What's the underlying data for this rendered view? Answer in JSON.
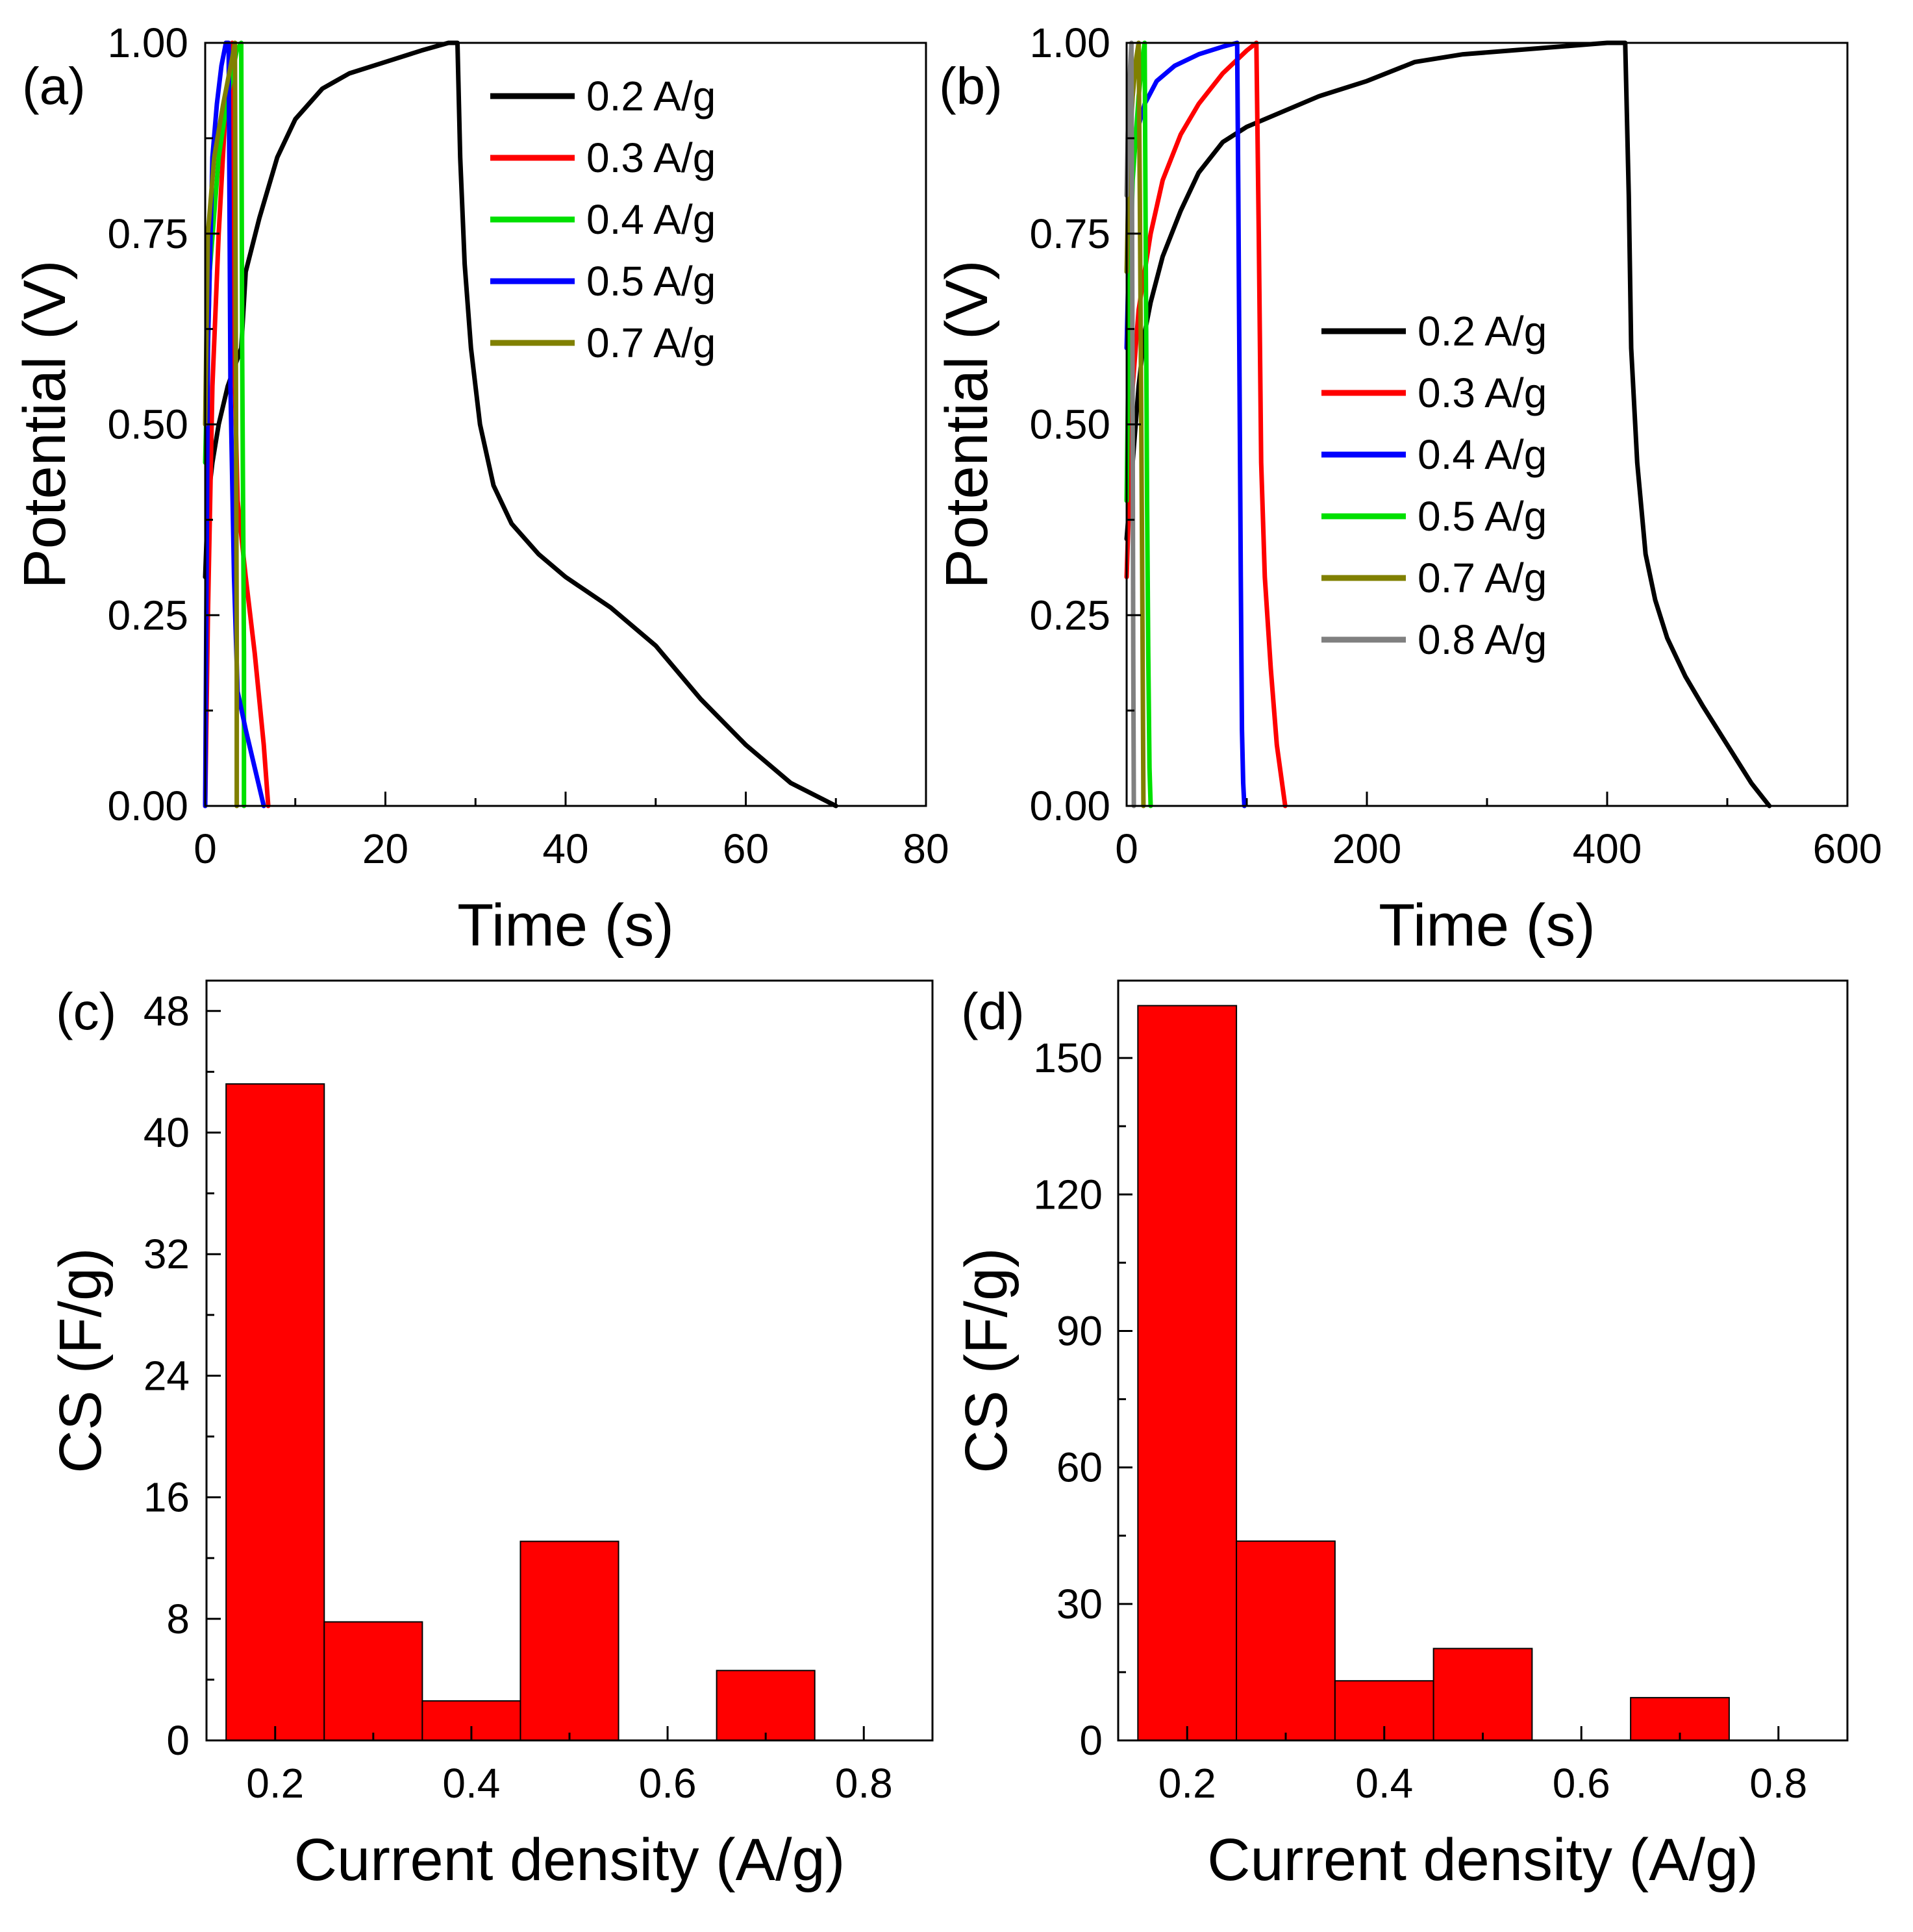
{
  "chart_data": [
    {
      "panel": "(a)",
      "type": "line",
      "xlabel": "Time (s)",
      "ylabel": "Potential (V)",
      "xlim": [
        0,
        80
      ],
      "ylim": [
        0,
        1.0
      ],
      "xticks": [
        0,
        20,
        40,
        60,
        80
      ],
      "yticks": [
        0.0,
        0.25,
        0.5,
        0.75,
        1.0
      ],
      "x_tick_labels": [
        "0",
        "20",
        "40",
        "60",
        "80"
      ],
      "y_tick_labels": [
        "0.00",
        "0.25",
        "0.50",
        "0.75",
        "1.00"
      ],
      "legend_position": "top-right",
      "series": [
        {
          "name": "0.2 A/g",
          "color": "#000000",
          "legend": true,
          "x": [
            0,
            0.3,
            0.8,
            1.5,
            2.5,
            4.0,
            4.5,
            6,
            8,
            10,
            13,
            16,
            20,
            24,
            27,
            28,
            28.3,
            28.8,
            29.5,
            30.5,
            32,
            34,
            37,
            40,
            45,
            50,
            55,
            60,
            65,
            70
          ],
          "y": [
            0.3,
            0.4,
            0.45,
            0.5,
            0.55,
            0.6,
            0.7,
            0.77,
            0.85,
            0.9,
            0.94,
            0.96,
            0.975,
            0.99,
            1.0,
            1.0,
            0.85,
            0.71,
            0.6,
            0.5,
            0.42,
            0.37,
            0.33,
            0.3,
            0.26,
            0.21,
            0.14,
            0.08,
            0.03,
            0.0
          ]
        },
        {
          "name": "0.3 A/g",
          "color": "#ff0000",
          "legend": true,
          "x": [
            0,
            0.3,
            0.8,
            1.5,
            2.2,
            2.8,
            3.0,
            3.2,
            3.6,
            4.5,
            5.5,
            6.5,
            7.0
          ],
          "y": [
            0.0,
            0.25,
            0.55,
            0.75,
            0.9,
            0.98,
            1.0,
            0.6,
            0.4,
            0.3,
            0.2,
            0.08,
            0.0
          ]
        },
        {
          "name": "0.4 A/g",
          "color": "#00e000",
          "legend": true,
          "x": [
            0,
            0.5,
            1.5,
            2.5,
            3.5,
            4.0,
            4.1,
            4.3,
            4.3
          ],
          "y": [
            0.45,
            0.7,
            0.85,
            0.93,
            0.99,
            1.0,
            0.6,
            0.2,
            0.0
          ]
        },
        {
          "name": "0.5 A/g",
          "color": "#0000ff",
          "legend": true,
          "x": [
            0,
            0.3,
            0.8,
            1.3,
            1.8,
            2.3,
            2.6,
            2.8,
            3.2,
            3.6,
            4.5,
            5.5,
            6.5
          ],
          "y": [
            0.0,
            0.6,
            0.85,
            0.92,
            0.97,
            1.0,
            1.0,
            0.55,
            0.3,
            0.15,
            0.1,
            0.05,
            0.0
          ]
        },
        {
          "name": "0.7 A/g",
          "color": "#808000",
          "legend": true,
          "x": [
            0,
            0.3,
            1.0,
            2.0,
            3.0,
            3.3,
            3.4,
            3.5,
            3.5
          ],
          "y": [
            0.5,
            0.75,
            0.85,
            0.92,
            0.98,
            1.0,
            0.6,
            0.2,
            0.0
          ]
        }
      ]
    },
    {
      "panel": "(b)",
      "type": "line",
      "xlabel": "Time (s)",
      "ylabel": "Potential (V)",
      "xlim": [
        0,
        600
      ],
      "ylim": [
        0,
        1.0
      ],
      "xticks": [
        0,
        200,
        400,
        600
      ],
      "yticks": [
        0.0,
        0.25,
        0.5,
        0.75,
        1.0
      ],
      "x_tick_labels": [
        "0",
        "200",
        "400",
        "600"
      ],
      "y_tick_labels": [
        "0.00",
        "0.25",
        "0.50",
        "0.75",
        "1.00"
      ],
      "legend_position": "center-right",
      "series": [
        {
          "name": "0.2 A/g",
          "color": "#000000",
          "legend": true,
          "x": [
            0,
            5,
            10,
            15,
            20,
            30,
            45,
            60,
            80,
            100,
            130,
            160,
            200,
            240,
            280,
            320,
            360,
            400,
            415,
            418,
            420,
            425,
            432,
            440,
            450,
            465,
            480,
            500,
            520,
            535
          ],
          "y": [
            0.35,
            0.45,
            0.55,
            0.62,
            0.66,
            0.72,
            0.78,
            0.83,
            0.87,
            0.89,
            0.91,
            0.93,
            0.95,
            0.975,
            0.985,
            0.99,
            0.995,
            1.0,
            1.0,
            0.8,
            0.6,
            0.45,
            0.33,
            0.27,
            0.22,
            0.17,
            0.13,
            0.08,
            0.03,
            0.0
          ]
        },
        {
          "name": "0.3 A/g",
          "color": "#ff0000",
          "legend": true,
          "x": [
            0,
            5,
            10,
            20,
            30,
            45,
            60,
            80,
            100,
            108,
            110,
            112,
            115,
            120,
            125,
            132
          ],
          "y": [
            0.3,
            0.55,
            0.65,
            0.75,
            0.82,
            0.88,
            0.92,
            0.96,
            0.99,
            1.0,
            0.75,
            0.45,
            0.3,
            0.18,
            0.08,
            0.0
          ]
        },
        {
          "name": "0.4 A/g",
          "color": "#0000ff",
          "legend": true,
          "x": [
            0,
            3,
            8,
            15,
            25,
            40,
            60,
            80,
            92,
            93,
            94,
            95,
            96,
            97,
            98
          ],
          "y": [
            0.6,
            0.8,
            0.88,
            0.92,
            0.95,
            0.97,
            0.985,
            0.995,
            1.0,
            0.8,
            0.55,
            0.3,
            0.1,
            0.03,
            0.0
          ]
        },
        {
          "name": "0.5 A/g",
          "color": "#00e000",
          "legend": true,
          "x": [
            0,
            2,
            5,
            10,
            14,
            15,
            16,
            17,
            18,
            19,
            20
          ],
          "y": [
            0.4,
            0.65,
            0.82,
            0.93,
            0.99,
            1.0,
            0.7,
            0.4,
            0.2,
            0.05,
            0.0
          ]
        },
        {
          "name": "0.7 A/g",
          "color": "#808000",
          "legend": true,
          "x": [
            0,
            2,
            5,
            8,
            10,
            11,
            12,
            13,
            14
          ],
          "y": [
            0.7,
            0.85,
            0.93,
            0.98,
            1.0,
            0.8,
            0.55,
            0.3,
            0.0
          ]
        },
        {
          "name": "0.8 A/g",
          "color": "#808080",
          "legend": true,
          "x": [
            0,
            1,
            2,
            3,
            4,
            4.5,
            5,
            5.5,
            6
          ],
          "y": [
            0.8,
            0.88,
            0.93,
            0.97,
            1.0,
            0.8,
            0.5,
            0.2,
            0.0
          ]
        }
      ]
    },
    {
      "panel": "(c)",
      "type": "bar",
      "xlabel": "Current density (A/g)",
      "ylabel": "CS (F/g)",
      "xlim": [
        0.13,
        0.87
      ],
      "ylim": [
        0,
        50
      ],
      "xticks": [
        0.2,
        0.4,
        0.6,
        0.8
      ],
      "yticks": [
        0,
        8,
        16,
        24,
        32,
        40,
        48
      ],
      "x_tick_labels": [
        "0.2",
        "0.4",
        "0.6",
        "0.8"
      ],
      "y_tick_labels": [
        "0",
        "8",
        "16",
        "24",
        "32",
        "40",
        "48"
      ],
      "bar_width": 0.1,
      "bar_color": "#ff0000",
      "categories": [
        0.2,
        0.3,
        0.4,
        0.5,
        0.7
      ],
      "values": [
        43.2,
        7.8,
        2.6,
        13.1,
        4.6
      ]
    },
    {
      "panel": "(d)",
      "type": "bar",
      "xlabel": "Current density (A/g)",
      "ylabel": "CS (F/g)",
      "xlim": [
        0.13,
        0.87
      ],
      "ylim": [
        0,
        167
      ],
      "xticks": [
        0.2,
        0.4,
        0.6,
        0.8
      ],
      "yticks": [
        0,
        30,
        60,
        90,
        120,
        150
      ],
      "x_tick_labels": [
        "0.2",
        "0.4",
        "0.6",
        "0.8"
      ],
      "y_tick_labels": [
        "0",
        "30",
        "60",
        "90",
        "120",
        "150"
      ],
      "bar_width": 0.1,
      "bar_color": "#ff0000",
      "categories": [
        0.2,
        0.3,
        0.4,
        0.5,
        0.7
      ],
      "values": [
        161.5,
        43.8,
        13.1,
        20.2,
        9.4
      ]
    }
  ]
}
